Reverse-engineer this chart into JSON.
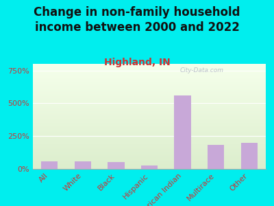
{
  "title": "Change in non-family household\nincome between 2000 and 2022",
  "subtitle": "Highland, IN",
  "categories": [
    "All",
    "White",
    "Black",
    "Hispanic",
    "American Indian",
    "Multirace",
    "Other"
  ],
  "values": [
    55,
    58,
    52,
    28,
    560,
    185,
    200
  ],
  "bar_color": "#c8a8d8",
  "title_fontsize": 12,
  "subtitle_fontsize": 10,
  "subtitle_color": "#cc3333",
  "title_color": "#111111",
  "ylabel_ticks": [
    0,
    250,
    500,
    750
  ],
  "ylabel_labels": [
    "0%",
    "250%",
    "500%",
    "750%"
  ],
  "ylim": [
    0,
    800
  ],
  "bg_color": "#00eeee",
  "watermark": "City-Data.com",
  "tick_label_color": "#cc3333",
  "ytick_label_color": "#cc3333",
  "tick_label_fontsize": 8,
  "xlabel_fontsize": 8
}
